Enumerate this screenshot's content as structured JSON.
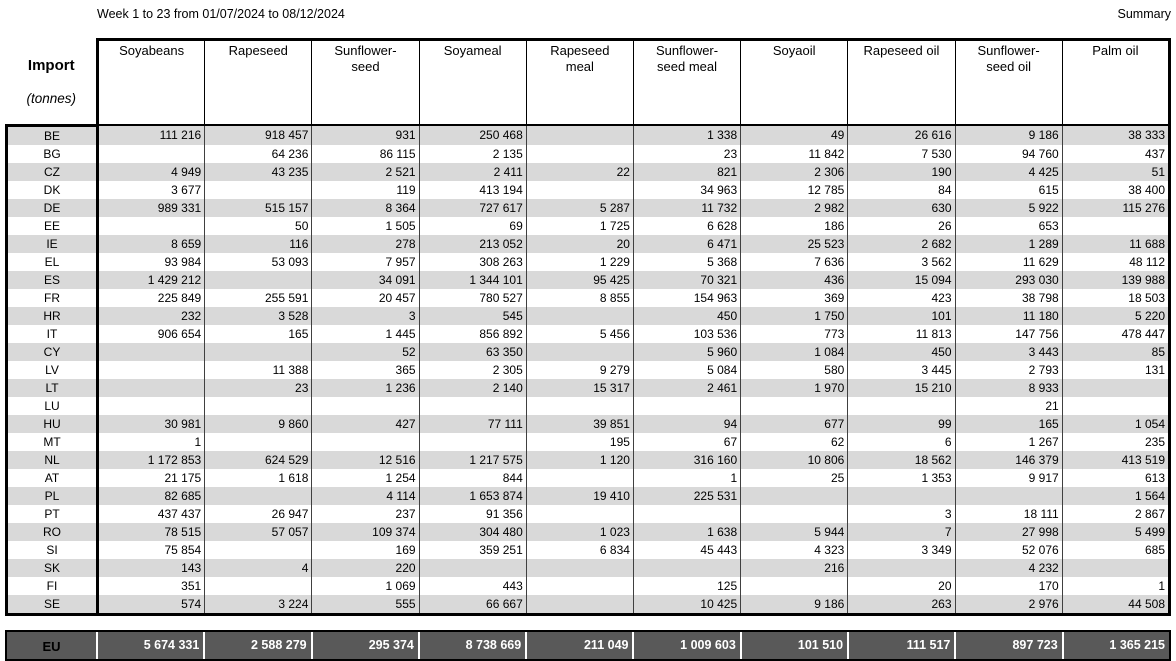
{
  "header": {
    "period": "Week 1 to 23 from 01/07/2024 to 08/12/2024",
    "summary_label": "Summary"
  },
  "colors": {
    "stripe": "#d9d9d9",
    "total_bg": "#595959",
    "total_text": "#ffffff",
    "grid": "#404040"
  },
  "table": {
    "corner": {
      "title": "Import",
      "unit": "(tonnes)"
    },
    "columns": [
      "Soyabeans",
      "Rapeseed",
      "Sunflower-\nseed",
      "Soyameal",
      "Rapeseed\nmeal",
      "Sunflower-\nseed meal",
      "Soyaoil",
      "Rapeseed oil",
      "Sunflower-\nseed oil",
      "Palm oil"
    ],
    "rows": [
      {
        "country": "BE",
        "values": [
          "111 216",
          "918 457",
          "931",
          "250 468",
          "",
          "1 338",
          "49",
          "26 616",
          "9 186",
          "38 333"
        ]
      },
      {
        "country": "BG",
        "values": [
          "",
          "64 236",
          "86 115",
          "2 135",
          "",
          "23",
          "11 842",
          "7 530",
          "94 760",
          "437"
        ]
      },
      {
        "country": "CZ",
        "values": [
          "4 949",
          "43 235",
          "2 521",
          "2 411",
          "22",
          "821",
          "2 306",
          "190",
          "4 425",
          "51"
        ]
      },
      {
        "country": "DK",
        "values": [
          "3 677",
          "",
          "119",
          "413 194",
          "",
          "34 963",
          "12 785",
          "84",
          "615",
          "38 400"
        ]
      },
      {
        "country": "DE",
        "values": [
          "989 331",
          "515 157",
          "8 364",
          "727 617",
          "5 287",
          "11 732",
          "2 982",
          "630",
          "5 922",
          "115 276"
        ]
      },
      {
        "country": "EE",
        "values": [
          "",
          "50",
          "1 505",
          "69",
          "1 725",
          "6 628",
          "186",
          "26",
          "653",
          ""
        ]
      },
      {
        "country": "IE",
        "values": [
          "8 659",
          "116",
          "278",
          "213 052",
          "20",
          "6 471",
          "25 523",
          "2 682",
          "1 289",
          "11 688"
        ]
      },
      {
        "country": "EL",
        "values": [
          "93 984",
          "53 093",
          "7 957",
          "308 263",
          "1 229",
          "5 368",
          "7 636",
          "3 562",
          "11 629",
          "48 112"
        ]
      },
      {
        "country": "ES",
        "values": [
          "1 429 212",
          "",
          "34 091",
          "1 344 101",
          "95 425",
          "70 321",
          "436",
          "15 094",
          "293 030",
          "139 988"
        ]
      },
      {
        "country": "FR",
        "values": [
          "225 849",
          "255 591",
          "20 457",
          "780 527",
          "8 855",
          "154 963",
          "369",
          "423",
          "38 798",
          "18 503"
        ]
      },
      {
        "country": "HR",
        "values": [
          "232",
          "3 528",
          "3",
          "545",
          "",
          "450",
          "1 750",
          "101",
          "11 180",
          "5 220"
        ]
      },
      {
        "country": "IT",
        "values": [
          "906 654",
          "165",
          "1 445",
          "856 892",
          "5 456",
          "103 536",
          "773",
          "11 813",
          "147 756",
          "478 447"
        ]
      },
      {
        "country": "CY",
        "values": [
          "",
          "",
          "52",
          "63 350",
          "",
          "5 960",
          "1 084",
          "450",
          "3 443",
          "85"
        ]
      },
      {
        "country": "LV",
        "values": [
          "",
          "11 388",
          "365",
          "2 305",
          "9 279",
          "5 084",
          "580",
          "3 445",
          "2 793",
          "131"
        ]
      },
      {
        "country": "LT",
        "values": [
          "",
          "23",
          "1 236",
          "2 140",
          "15 317",
          "2 461",
          "1 970",
          "15 210",
          "8 933",
          ""
        ]
      },
      {
        "country": "LU",
        "values": [
          "",
          "",
          "",
          "",
          "",
          "",
          "",
          "",
          "21",
          ""
        ]
      },
      {
        "country": "HU",
        "values": [
          "30 981",
          "9 860",
          "427",
          "77 111",
          "39 851",
          "94",
          "677",
          "99",
          "165",
          "1 054"
        ]
      },
      {
        "country": "MT",
        "values": [
          "1",
          "",
          "",
          "",
          "195",
          "67",
          "62",
          "6",
          "1 267",
          "235"
        ]
      },
      {
        "country": "NL",
        "values": [
          "1 172 853",
          "624 529",
          "12 516",
          "1 217 575",
          "1 120",
          "316 160",
          "10 806",
          "18 562",
          "146 379",
          "413 519"
        ]
      },
      {
        "country": "AT",
        "values": [
          "21 175",
          "1 618",
          "1 254",
          "844",
          "",
          "1",
          "25",
          "1 353",
          "9 917",
          "613"
        ]
      },
      {
        "country": "PL",
        "values": [
          "82 685",
          "",
          "4 114",
          "1 653 874",
          "19 410",
          "225 531",
          "",
          "",
          "",
          "1 564"
        ]
      },
      {
        "country": "PT",
        "values": [
          "437 437",
          "26 947",
          "237",
          "91 356",
          "",
          "",
          "",
          "3",
          "18 111",
          "2 867"
        ]
      },
      {
        "country": "RO",
        "values": [
          "78 515",
          "57 057",
          "109 374",
          "304 480",
          "1 023",
          "1 638",
          "5 944",
          "7",
          "27 998",
          "5 499"
        ]
      },
      {
        "country": "SI",
        "values": [
          "75 854",
          "",
          "169",
          "359 251",
          "6 834",
          "45 443",
          "4 323",
          "3 349",
          "52 076",
          "685"
        ]
      },
      {
        "country": "SK",
        "values": [
          "143",
          "4",
          "220",
          "",
          "",
          "",
          "216",
          "",
          "4 232",
          ""
        ]
      },
      {
        "country": "FI",
        "values": [
          "351",
          "",
          "1 069",
          "443",
          "",
          "125",
          "",
          "20",
          "170",
          "1"
        ]
      },
      {
        "country": "SE",
        "values": [
          "574",
          "3 224",
          "555",
          "66 667",
          "",
          "10 425",
          "9 186",
          "263",
          "2 976",
          "44 508"
        ]
      }
    ],
    "total": {
      "label": "EU",
      "values": [
        "5 674 331",
        "2 588 279",
        "295 374",
        "8 738 669",
        "211 049",
        "1 009 603",
        "101 510",
        "111 517",
        "897 723",
        "1 365 215"
      ]
    }
  }
}
